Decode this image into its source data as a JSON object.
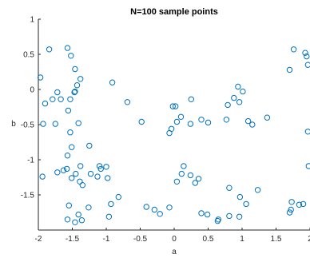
{
  "chart_data": {
    "type": "scatter",
    "title": "N=100 sample points",
    "xlabel": "a",
    "ylabel": "b",
    "xlim": [
      -2,
      2
    ],
    "ylim": [
      -2,
      1
    ],
    "xticks": [
      -2,
      -1.5,
      -1,
      -0.5,
      0,
      0.5,
      1,
      1.5,
      2
    ],
    "xtick_labels": [
      "-2",
      "-1.5",
      "-1",
      "-0.5",
      "0",
      "0.5",
      "1",
      "1.5",
      "2"
    ],
    "yticks": [
      1,
      0.5,
      0,
      -0.5,
      -1,
      -1.5
    ],
    "ytick_labels": [
      "1",
      "0.5",
      "0",
      "-0.5",
      "-1",
      "-1.5"
    ],
    "grid": false,
    "marker": "circle-open",
    "color": "#0072BD",
    "points": [
      [
        -1.84,
        0.57
      ],
      [
        -1.57,
        0.59
      ],
      [
        -1.52,
        0.48
      ],
      [
        -1.38,
        0.15
      ],
      [
        -1.46,
        0.29
      ],
      [
        -1.43,
        0.06
      ],
      [
        -1.47,
        -0.04
      ],
      [
        -1.53,
        -0.14
      ],
      [
        -1.72,
        -0.04
      ],
      [
        -1.67,
        -0.14
      ],
      [
        -1.79,
        -0.14
      ],
      [
        -1.9,
        -0.2
      ],
      [
        -1.97,
        0.17
      ],
      [
        -1.93,
        -0.49
      ],
      [
        -1.75,
        -0.49
      ],
      [
        -1.56,
        -0.3
      ],
      [
        -1.53,
        -0.61
      ],
      [
        -1.46,
        -0.03
      ],
      [
        -1.41,
        -0.48
      ],
      [
        -1.51,
        -0.82
      ],
      [
        -1.57,
        -0.94
      ],
      [
        -1.25,
        -0.8
      ],
      [
        -1.72,
        -1.18
      ],
      [
        -1.63,
        -1.15
      ],
      [
        -1.58,
        -1.13
      ],
      [
        -1.51,
        -1.26
      ],
      [
        -1.38,
        -1.09
      ],
      [
        -1.39,
        -1.31
      ],
      [
        -1.35,
        -1.36
      ],
      [
        -1.23,
        -1.2
      ],
      [
        -1.45,
        -1.2
      ],
      [
        -1.1,
        -1.09
      ],
      [
        -1.08,
        -1.13
      ],
      [
        -1.0,
        -1.1
      ],
      [
        -1.13,
        -1.24
      ],
      [
        -0.98,
        -1.26
      ],
      [
        -1.94,
        -1.24
      ],
      [
        -1.55,
        -1.65
      ],
      [
        -1.26,
        -1.68
      ],
      [
        -1.41,
        -1.78
      ],
      [
        -1.57,
        -1.85
      ],
      [
        -1.46,
        -1.89
      ],
      [
        -1.36,
        -1.86
      ],
      [
        -0.82,
        -1.53
      ],
      [
        -0.93,
        -1.63
      ],
      [
        -0.96,
        -1.81
      ],
      [
        -0.91,
        0.1
      ],
      [
        -0.69,
        -0.18
      ],
      [
        -0.48,
        -0.46
      ],
      [
        -0.41,
        -1.67
      ],
      [
        -0.29,
        -1.71
      ],
      [
        -0.21,
        -1.77
      ],
      [
        -0.07,
        -1.68
      ],
      [
        -0.04,
        -0.56
      ],
      [
        -0.07,
        -0.62
      ],
      [
        -0.02,
        -0.24
      ],
      [
        0.02,
        -0.24
      ],
      [
        0.04,
        -0.46
      ],
      [
        0.1,
        -0.39
      ],
      [
        0.25,
        -0.14
      ],
      [
        0.24,
        -0.49
      ],
      [
        0.4,
        -0.43
      ],
      [
        0.5,
        -0.47
      ],
      [
        0.14,
        -1.09
      ],
      [
        0.11,
        -1.2
      ],
      [
        0.24,
        -1.22
      ],
      [
        0.31,
        -1.33
      ],
      [
        0.36,
        -1.27
      ],
      [
        0.04,
        -1.31
      ],
      [
        0.4,
        -1.76
      ],
      [
        0.49,
        -1.78
      ],
      [
        0.65,
        -1.85
      ],
      [
        0.81,
        -1.8
      ],
      [
        0.64,
        -1.87
      ],
      [
        0.96,
        -1.81
      ],
      [
        0.81,
        -1.4
      ],
      [
        0.97,
        -1.53
      ],
      [
        1.06,
        -1.63
      ],
      [
        1.23,
        -1.43
      ],
      [
        0.77,
        -0.43
      ],
      [
        0.79,
        -0.22
      ],
      [
        0.88,
        -0.12
      ],
      [
        0.94,
        0.04
      ],
      [
        1.01,
        -0.03
      ],
      [
        0.96,
        -0.18
      ],
      [
        1.09,
        -0.45
      ],
      [
        1.15,
        -0.5
      ],
      [
        1.37,
        -0.4
      ],
      [
        1.76,
        0.57
      ],
      [
        1.7,
        0.28
      ],
      [
        1.93,
        0.52
      ],
      [
        1.95,
        0.47
      ],
      [
        1.97,
        0.35
      ],
      [
        1.97,
        -0.6
      ],
      [
        1.98,
        -1.09
      ],
      [
        1.73,
        -1.6
      ],
      [
        1.72,
        -1.71
      ],
      [
        1.7,
        -1.75
      ],
      [
        1.9,
        -1.63
      ],
      [
        1.84,
        -1.64
      ]
    ]
  }
}
